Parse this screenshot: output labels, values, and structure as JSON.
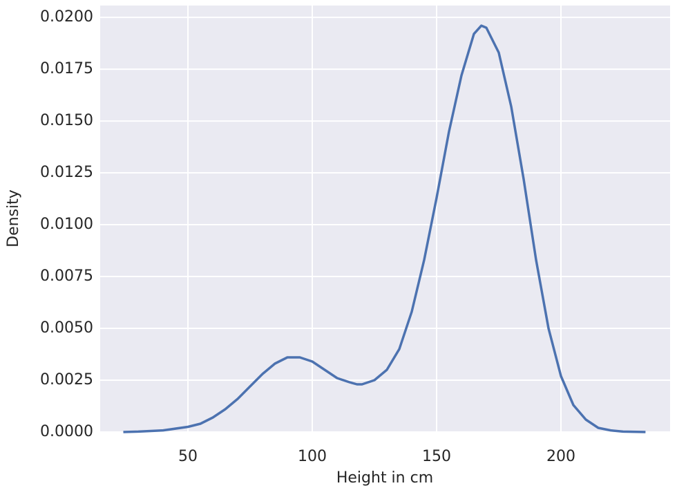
{
  "chart_data": {
    "type": "line",
    "xlabel": "Height in cm",
    "ylabel": "Density",
    "x": [
      24,
      30,
      40,
      50,
      55,
      60,
      65,
      70,
      75,
      80,
      85,
      90,
      95,
      100,
      105,
      110,
      115,
      118,
      120,
      125,
      130,
      135,
      140,
      145,
      150,
      155,
      160,
      165,
      168,
      170,
      175,
      180,
      185,
      190,
      195,
      200,
      205,
      210,
      215,
      220,
      225,
      234
    ],
    "values": [
      0,
      2e-05,
      8e-05,
      0.00025,
      0.0004,
      0.0007,
      0.0011,
      0.0016,
      0.0022,
      0.0028,
      0.0033,
      0.0036,
      0.0036,
      0.0034,
      0.003,
      0.0026,
      0.0024,
      0.0023,
      0.0023,
      0.0025,
      0.003,
      0.004,
      0.0058,
      0.0083,
      0.0113,
      0.0145,
      0.0172,
      0.0192,
      0.0196,
      0.0195,
      0.0183,
      0.0157,
      0.0122,
      0.0083,
      0.005,
      0.0027,
      0.0013,
      0.0006,
      0.0002,
      8e-05,
      2e-05,
      0
    ],
    "color": "#4c72b0",
    "xlim": [
      14.7,
      243.9
    ],
    "ylim": [
      0,
      0.02057
    ],
    "xticks": [
      50,
      100,
      150,
      200
    ],
    "yticks": [
      {
        "value": 0,
        "label": "0.0000"
      },
      {
        "value": 0.0025,
        "label": "0.0025"
      },
      {
        "value": 0.005,
        "label": "0.0050"
      },
      {
        "value": 0.0075,
        "label": "0.0075"
      },
      {
        "value": 0.01,
        "label": "0.0100"
      },
      {
        "value": 0.0125,
        "label": "0.0125"
      },
      {
        "value": 0.015,
        "label": "0.0150"
      },
      {
        "value": 0.0175,
        "label": "0.0175"
      },
      {
        "value": 0.02,
        "label": "0.0200"
      }
    ],
    "grid": true
  }
}
